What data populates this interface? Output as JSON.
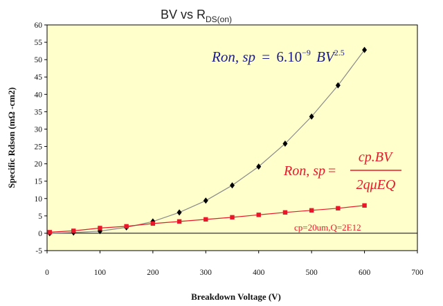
{
  "chart_data": {
    "type": "line",
    "title": {
      "main": "BV vs R",
      "sub": "DS(on)"
    },
    "xlabel": "Breakdown Voltage (V)",
    "ylabel": "Specific Rdson (mΩ -cm2)",
    "xlim": [
      0,
      700
    ],
    "ylim": [
      -5,
      60
    ],
    "xticks": [
      0,
      100,
      200,
      300,
      400,
      500,
      600,
      700
    ],
    "yticks": [
      -5,
      0,
      5,
      10,
      15,
      20,
      25,
      30,
      35,
      40,
      45,
      50,
      55,
      60
    ],
    "x": [
      5,
      50,
      100,
      150,
      200,
      250,
      300,
      350,
      400,
      450,
      500,
      550,
      600
    ],
    "series": [
      {
        "name": "Ron,sp = 6.10^-9 BV^2.5",
        "color": "#000000",
        "marker": "diamond",
        "values": [
          0.0,
          0.2,
          0.6,
          1.7,
          3.4,
          6.0,
          9.4,
          13.8,
          19.2,
          25.8,
          33.6,
          42.6,
          52.8
        ]
      },
      {
        "name": "Ron,sp = cp.BV / 2quEQ",
        "color": "#e8182a",
        "marker": "square",
        "values": [
          0.3,
          0.7,
          1.5,
          2.0,
          2.8,
          3.4,
          4.0,
          4.6,
          5.3,
          6.0,
          6.6,
          7.2,
          8.0
        ]
      }
    ]
  },
  "annotations": {
    "eq1": {
      "lhs": "Ron, sp",
      "eq": "=",
      "coef": "6.10",
      "exp1": "−9",
      "var": "BV",
      "exp2": "2.5"
    },
    "eq2": {
      "lhs": "Ron, sp",
      "eq": "=",
      "num": "cp.BV",
      "den": "2qμEQ"
    },
    "note": "cp=20um,Q=2E12"
  },
  "colors": {
    "plot_bg": "#ffffcc",
    "curve": "#8a8a8a",
    "blue": "#1a1a8c",
    "red": "#e8182a"
  }
}
